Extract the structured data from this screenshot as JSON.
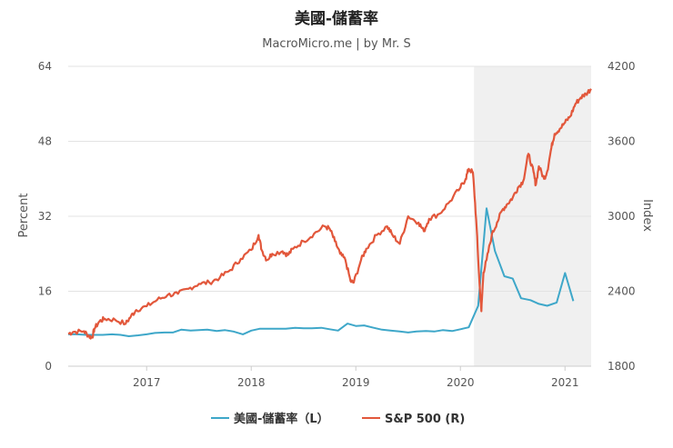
{
  "chart_data": {
    "type": "line",
    "title": "美國-儲蓄率",
    "subtitle": "MacroMicro.me | by Mr. S",
    "x_ticks": [
      "2017",
      "2018",
      "2019",
      "2020",
      "2021"
    ],
    "x_tick_values": [
      2017.0,
      2018.0,
      2019.0,
      2020.0,
      2021.0
    ],
    "xlim": [
      2016.25,
      2021.25
    ],
    "shaded_region": [
      2020.13,
      2021.25
    ],
    "left_axis": {
      "title": "Percent",
      "ticks": [
        "0",
        "16",
        "32",
        "48",
        "64"
      ],
      "ylim": [
        0,
        64
      ]
    },
    "right_axis": {
      "title": "Index",
      "ticks": [
        "1800",
        "2400",
        "3000",
        "3600",
        "4200"
      ],
      "ylim": [
        1800,
        4200
      ]
    },
    "series": [
      {
        "name": "美國-儲蓄率（L）",
        "axis": "left",
        "color": "#3ea7c9",
        "x": [
          2016.25,
          2016.33,
          2016.42,
          2016.5,
          2016.58,
          2016.67,
          2016.75,
          2016.83,
          2016.92,
          2017.0,
          2017.08,
          2017.17,
          2017.25,
          2017.33,
          2017.42,
          2017.5,
          2017.58,
          2017.67,
          2017.75,
          2017.83,
          2017.92,
          2018.0,
          2018.08,
          2018.17,
          2018.25,
          2018.33,
          2018.42,
          2018.5,
          2018.58,
          2018.67,
          2018.75,
          2018.83,
          2018.92,
          2019.0,
          2019.08,
          2019.17,
          2019.25,
          2019.33,
          2019.42,
          2019.5,
          2019.58,
          2019.67,
          2019.75,
          2019.83,
          2019.92,
          2020.0,
          2020.08,
          2020.17,
          2020.25,
          2020.33,
          2020.42,
          2020.5,
          2020.58,
          2020.67,
          2020.75,
          2020.83,
          2020.92,
          2021.0,
          2021.08
        ],
        "values": [
          6.8,
          6.8,
          6.7,
          6.7,
          6.7,
          6.8,
          6.7,
          6.4,
          6.6,
          6.8,
          7.1,
          7.2,
          7.2,
          7.8,
          7.6,
          7.7,
          7.8,
          7.5,
          7.7,
          7.4,
          6.8,
          7.6,
          8.0,
          8.0,
          8.0,
          8.0,
          8.2,
          8.1,
          8.1,
          8.2,
          7.9,
          7.6,
          9.1,
          8.6,
          8.7,
          8.2,
          7.8,
          7.6,
          7.4,
          7.2,
          7.4,
          7.5,
          7.4,
          7.7,
          7.5,
          7.9,
          8.3,
          12.9,
          33.7,
          24.6,
          19.2,
          18.7,
          14.5,
          14.1,
          13.3,
          12.9,
          13.6,
          19.9,
          13.9
        ]
      },
      {
        "name": "S&P 500 (R)",
        "axis": "right",
        "color": "#e2573b",
        "x": [
          2016.25,
          2016.3,
          2016.4,
          2016.45,
          2016.48,
          2016.5,
          2016.55,
          2016.6,
          2016.7,
          2016.8,
          2016.85,
          2016.9,
          2017.0,
          2017.1,
          2017.2,
          2017.3,
          2017.4,
          2017.5,
          2017.6,
          2017.7,
          2017.8,
          2017.9,
          2018.0,
          2018.07,
          2018.1,
          2018.15,
          2018.2,
          2018.3,
          2018.35,
          2018.4,
          2018.5,
          2018.6,
          2018.7,
          2018.75,
          2018.8,
          2018.85,
          2018.9,
          2018.95,
          2018.98,
          2019.05,
          2019.1,
          2019.2,
          2019.3,
          2019.35,
          2019.42,
          2019.5,
          2019.6,
          2019.65,
          2019.7,
          2019.8,
          2019.9,
          2020.0,
          2020.05,
          2020.08,
          2020.12,
          2020.15,
          2020.18,
          2020.2,
          2020.22,
          2020.25,
          2020.3,
          2020.35,
          2020.4,
          2020.45,
          2020.5,
          2020.55,
          2020.6,
          2020.65,
          2020.7,
          2020.72,
          2020.75,
          2020.8,
          2020.83,
          2020.87,
          2020.9,
          2020.95,
          2021.0,
          2021.05,
          2021.1,
          2021.15,
          2021.2,
          2021.25
        ],
        "values": [
          2060,
          2075,
          2080,
          2040,
          2030,
          2100,
          2160,
          2180,
          2170,
          2140,
          2200,
          2250,
          2280,
          2330,
          2370,
          2380,
          2420,
          2460,
          2470,
          2510,
          2570,
          2660,
          2730,
          2850,
          2730,
          2650,
          2700,
          2720,
          2690,
          2740,
          2800,
          2860,
          2920,
          2900,
          2800,
          2700,
          2650,
          2480,
          2470,
          2650,
          2740,
          2850,
          2920,
          2850,
          2780,
          3000,
          2950,
          2880,
          2980,
          3020,
          3120,
          3230,
          3300,
          3380,
          3350,
          2980,
          2500,
          2240,
          2550,
          2650,
          2850,
          2950,
          3050,
          3100,
          3150,
          3230,
          3280,
          3500,
          3350,
          3250,
          3400,
          3300,
          3360,
          3550,
          3660,
          3700,
          3750,
          3800,
          3900,
          3950,
          3980,
          4020
        ]
      }
    ]
  }
}
